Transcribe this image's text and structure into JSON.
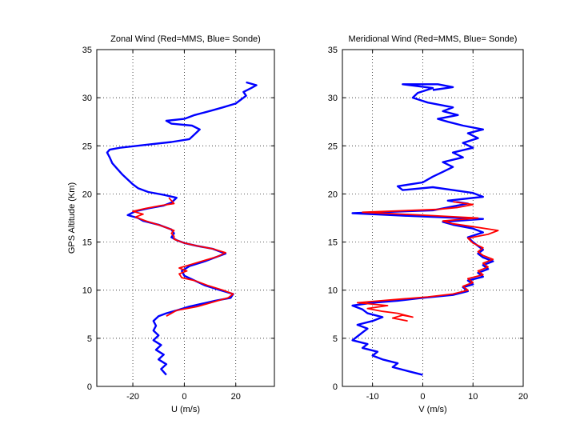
{
  "chart_data": [
    {
      "type": "line",
      "title": "Zonal Wind (Red=MMS, Blue= Sonde)",
      "xlabel": "U (m/s)",
      "ylabel": "GPS Altitude (Km)",
      "xlim": [
        -34,
        35
      ],
      "ylim": [
        0,
        35
      ],
      "xticks": [
        -20,
        0,
        20
      ],
      "yticks": [
        0,
        5,
        10,
        15,
        20,
        25,
        30,
        35
      ],
      "grid": true,
      "series": [
        {
          "name": "Sonde",
          "color": "#0000ff",
          "points": [
            [
              -7,
              1.2
            ],
            [
              -9,
              1.8
            ],
            [
              -7,
              2.3
            ],
            [
              -10,
              2.8
            ],
            [
              -8,
              3.3
            ],
            [
              -11,
              3.8
            ],
            [
              -9,
              4.3
            ],
            [
              -12,
              4.8
            ],
            [
              -10,
              5.3
            ],
            [
              -12,
              5.8
            ],
            [
              -11,
              6.3
            ],
            [
              -12,
              6.8
            ],
            [
              -10,
              7.3
            ],
            [
              -7,
              7.6
            ],
            [
              -3,
              7.9
            ],
            [
              2,
              8.3
            ],
            [
              7,
              8.6
            ],
            [
              12,
              8.9
            ],
            [
              18,
              9.2
            ],
            [
              19,
              9.6
            ],
            [
              14,
              10.0
            ],
            [
              8,
              10.5
            ],
            [
              4,
              11.0
            ],
            [
              0,
              11.5
            ],
            [
              -1,
              12.0
            ],
            [
              2,
              12.5
            ],
            [
              8,
              13.0
            ],
            [
              12,
              13.4
            ],
            [
              16,
              13.8
            ],
            [
              11,
              14.3
            ],
            [
              5,
              14.6
            ],
            [
              0,
              14.9
            ],
            [
              -3,
              15.2
            ],
            [
              -5,
              15.5
            ],
            [
              -4,
              15.9
            ],
            [
              -5,
              16.3
            ],
            [
              -10,
              16.8
            ],
            [
              -16,
              17.2
            ],
            [
              -18,
              17.5
            ],
            [
              -22,
              17.8
            ],
            [
              -19,
              18.2
            ],
            [
              -14,
              18.5
            ],
            [
              -8,
              18.8
            ],
            [
              -5,
              19.1
            ],
            [
              -3,
              19.6
            ],
            [
              -8,
              19.9
            ],
            [
              -14,
              20.2
            ],
            [
              -18,
              20.6
            ],
            [
              -20,
              21.0
            ],
            [
              -22,
              21.5
            ],
            [
              -24,
              22.0
            ],
            [
              -26,
              22.6
            ],
            [
              -28,
              23.2
            ],
            [
              -29,
              23.8
            ],
            [
              -30,
              24.3
            ],
            [
              -29,
              24.6
            ],
            [
              -25,
              24.8
            ],
            [
              -15,
              25.1
            ],
            [
              -5,
              25.4
            ],
            [
              2,
              25.7
            ],
            [
              4,
              26.2
            ],
            [
              6,
              26.7
            ],
            [
              3,
              27.1
            ],
            [
              -5,
              27.3
            ],
            [
              -7,
              27.6
            ],
            [
              0,
              27.8
            ],
            [
              4,
              28.2
            ],
            [
              11,
              28.7
            ],
            [
              15,
              29.0
            ],
            [
              20,
              29.4
            ],
            [
              22,
              29.8
            ],
            [
              24,
              30.2
            ],
            [
              23,
              30.6
            ],
            [
              26,
              31.0
            ],
            [
              28,
              31.3
            ],
            [
              24,
              31.6
            ]
          ]
        },
        {
          "name": "MMS",
          "color": "#ff0000",
          "points": [
            [
              -7,
              7.3
            ],
            [
              -3,
              7.9
            ],
            [
              1,
              8.1
            ],
            [
              5,
              8.3
            ],
            [
              9,
              8.6
            ],
            [
              13,
              8.9
            ],
            [
              17,
              9.2
            ],
            [
              19,
              9.6
            ],
            [
              15,
              10.0
            ],
            [
              9,
              10.5
            ],
            [
              4,
              11.0
            ],
            [
              -1,
              11.3
            ],
            [
              -2,
              11.7
            ],
            [
              1,
              12.0
            ],
            [
              -2,
              12.3
            ],
            [
              3,
              12.7
            ],
            [
              8,
              13.1
            ],
            [
              13,
              13.5
            ],
            [
              16,
              13.9
            ],
            [
              11,
              14.3
            ],
            [
              5,
              14.6
            ],
            [
              0,
              14.9
            ],
            [
              -4,
              15.3
            ],
            [
              -4,
              15.6
            ],
            [
              -5,
              15.9
            ],
            [
              -4,
              16.2
            ],
            [
              -9,
              16.7
            ],
            [
              -15,
              17.2
            ],
            [
              -19,
              17.6
            ],
            [
              -16,
              17.9
            ],
            [
              -20,
              18.2
            ],
            [
              -15,
              18.5
            ],
            [
              -9,
              18.8
            ],
            [
              -4,
              19.0
            ],
            [
              -5,
              19.3
            ],
            [
              -6,
              19.6
            ]
          ]
        }
      ]
    },
    {
      "type": "line",
      "title": "Meridional Wind (Red=MMS, Blue= Sonde)",
      "xlabel": "V (m/s)",
      "ylabel": "",
      "xlim": [
        -16,
        20
      ],
      "ylim": [
        0,
        35
      ],
      "xticks": [
        -10,
        0,
        10,
        20
      ],
      "yticks": [
        0,
        5,
        10,
        15,
        20,
        25,
        30,
        35
      ],
      "grid": true,
      "series": [
        {
          "name": "Sonde",
          "color": "#0000ff",
          "points": [
            [
              0,
              1.2
            ],
            [
              -3,
              1.6
            ],
            [
              -6,
              2.0
            ],
            [
              -5,
              2.4
            ],
            [
              -8,
              2.8
            ],
            [
              -10,
              3.2
            ],
            [
              -9,
              3.6
            ],
            [
              -12,
              4.0
            ],
            [
              -11,
              4.4
            ],
            [
              -14,
              4.8
            ],
            [
              -13,
              5.2
            ],
            [
              -12,
              5.6
            ],
            [
              -11,
              6.0
            ],
            [
              -13,
              6.4
            ],
            [
              -10,
              6.8
            ],
            [
              -8,
              7.2
            ],
            [
              -11,
              7.6
            ],
            [
              -12,
              8.0
            ],
            [
              -14,
              8.4
            ],
            [
              -10,
              8.7
            ],
            [
              -5,
              8.9
            ],
            [
              0,
              9.2
            ],
            [
              6,
              9.5
            ],
            [
              9,
              9.9
            ],
            [
              8,
              10.3
            ],
            [
              10,
              10.6
            ],
            [
              9,
              11.0
            ],
            [
              12,
              11.4
            ],
            [
              11,
              11.8
            ],
            [
              13,
              12.2
            ],
            [
              12,
              12.6
            ],
            [
              14,
              13.0
            ],
            [
              12,
              13.4
            ],
            [
              11,
              13.8
            ],
            [
              12,
              14.2
            ],
            [
              11,
              14.6
            ],
            [
              10,
              15.0
            ],
            [
              9,
              15.5
            ],
            [
              12,
              16.0
            ],
            [
              10,
              16.4
            ],
            [
              6,
              16.8
            ],
            [
              4,
              17.1
            ],
            [
              12,
              17.4
            ],
            [
              -2,
              17.7
            ],
            [
              -14,
              18.0
            ],
            [
              2,
              18.3
            ],
            [
              6,
              18.7
            ],
            [
              9,
              19.0
            ],
            [
              5,
              19.3
            ],
            [
              12,
              19.7
            ],
            [
              10,
              20.1
            ],
            [
              6,
              20.4
            ],
            [
              2,
              20.7
            ],
            [
              -4,
              20.4
            ],
            [
              -5,
              20.8
            ],
            [
              0,
              21.2
            ],
            [
              2,
              21.8
            ],
            [
              4,
              22.3
            ],
            [
              6,
              22.8
            ],
            [
              4,
              23.3
            ],
            [
              8,
              23.8
            ],
            [
              6,
              24.3
            ],
            [
              10,
              24.8
            ],
            [
              8,
              25.3
            ],
            [
              11,
              25.8
            ],
            [
              9,
              26.3
            ],
            [
              12,
              26.7
            ],
            [
              8,
              27.1
            ],
            [
              5,
              27.5
            ],
            [
              3,
              27.8
            ],
            [
              7,
              28.2
            ],
            [
              4,
              28.6
            ],
            [
              6,
              29.0
            ],
            [
              1,
              29.5
            ],
            [
              -2,
              30.0
            ],
            [
              -1,
              30.5
            ],
            [
              2,
              31.0
            ],
            [
              -4,
              31.4
            ],
            [
              3,
              31.4
            ],
            [
              6,
              31.1
            ],
            [
              2,
              30.8
            ]
          ]
        },
        {
          "name": "MMS",
          "color": "#ff0000",
          "points": [
            [
              -3,
              6.8
            ],
            [
              -6,
              7.1
            ],
            [
              -4,
              7.4
            ],
            [
              -2,
              7.2
            ],
            [
              -5,
              7.6
            ],
            [
              -8,
              7.8
            ],
            [
              -11,
              8.1
            ],
            [
              -7,
              8.4
            ],
            [
              -13,
              8.7
            ],
            [
              -6,
              9.0
            ],
            [
              1,
              9.3
            ],
            [
              6,
              9.6
            ],
            [
              9,
              10.0
            ],
            [
              8,
              10.4
            ],
            [
              10,
              10.8
            ],
            [
              9,
              11.2
            ],
            [
              12,
              11.6
            ],
            [
              11,
              12.0
            ],
            [
              13,
              12.4
            ],
            [
              12,
              12.8
            ],
            [
              14,
              13.2
            ],
            [
              12,
              13.6
            ],
            [
              11,
              14.0
            ],
            [
              12,
              14.4
            ],
            [
              10,
              14.9
            ],
            [
              9,
              15.4
            ],
            [
              13,
              15.8
            ],
            [
              15,
              16.2
            ],
            [
              10,
              16.6
            ],
            [
              6,
              16.9
            ],
            [
              4,
              17.2
            ],
            [
              11,
              17.5
            ],
            [
              0,
              17.8
            ],
            [
              -12,
              18.1
            ],
            [
              3,
              18.4
            ],
            [
              7,
              18.6
            ],
            [
              10,
              18.9
            ],
            [
              6,
              19.2
            ]
          ]
        }
      ]
    }
  ]
}
